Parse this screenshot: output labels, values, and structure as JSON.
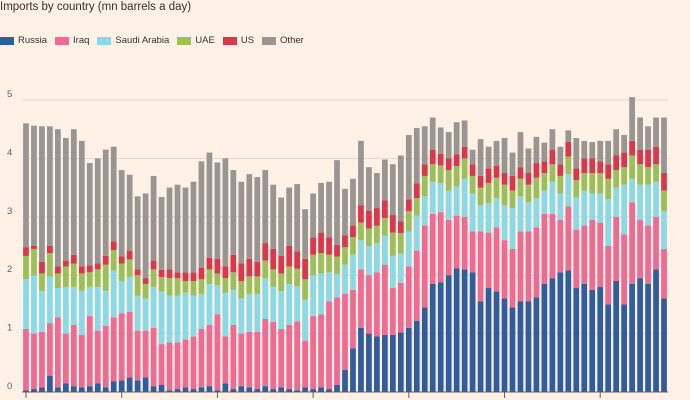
{
  "chart_data": {
    "type": "bar",
    "stacked": true,
    "title": "Imports by country (mn barrels a day)",
    "xlabel": "",
    "ylabel": "",
    "ylim": [
      0,
      5
    ],
    "yticks": [
      "0",
      "1",
      "2",
      "3",
      "4",
      "5"
    ],
    "grid": true,
    "legend_position": "top-left",
    "colors": {
      "Russia": "#2f5d9e",
      "Iraq": "#ee6b93",
      "Saudi Arabia": "#8ad9e6",
      "UAE": "#9bbf5a",
      "US": "#d9384a",
      "Other": "#999593"
    },
    "series": [
      {
        "name": "Russia",
        "values": [
          0.03,
          0.05,
          0.08,
          0.28,
          0.08,
          0.15,
          0.1,
          0.08,
          0.1,
          0.15,
          0.08,
          0.18,
          0.2,
          0.25,
          0.2,
          0.25,
          0.1,
          0.12,
          0.03,
          0.05,
          0.08,
          0.05,
          0.08,
          0.1,
          0.03,
          0.15,
          0.05,
          0.1,
          0.08,
          0.05,
          0.1,
          0.05,
          0.08,
          0.05,
          0.03,
          0.08,
          0.05,
          0.08,
          0.05,
          0.12,
          0.38,
          0.75,
          1.1,
          1.0,
          0.95,
          0.98,
          0.98,
          1.02,
          1.1,
          1.22,
          1.45,
          1.85,
          1.88,
          2.0,
          2.12,
          2.1,
          2.05,
          1.55,
          1.78,
          1.72,
          1.6,
          1.45,
          1.55,
          1.55,
          1.62,
          1.85,
          1.95,
          2.05,
          2.08,
          1.78,
          1.85,
          1.75,
          1.8,
          1.5,
          1.9,
          1.5,
          1.85,
          1.95,
          1.85,
          2.1,
          1.6
        ]
      },
      {
        "name": "Iraq",
        "values": [
          1.05,
          0.95,
          0.95,
          0.9,
          1.2,
          0.85,
          1.05,
          0.9,
          1.2,
          0.9,
          1.05,
          1.1,
          1.15,
          1.12,
          0.85,
          0.8,
          1.0,
          0.7,
          0.82,
          0.8,
          0.82,
          0.9,
          1.0,
          1.05,
          1.3,
          0.8,
          1.1,
          0.9,
          0.95,
          0.98,
          1.15,
          1.15,
          1.0,
          1.1,
          1.18,
          0.8,
          1.25,
          1.25,
          1.5,
          1.5,
          1.3,
          1.0,
          1.0,
          1.0,
          1.1,
          1.2,
          0.8,
          0.85,
          1.05,
          1.2,
          1.4,
          1.2,
          1.2,
          0.95,
          0.9,
          0.9,
          0.7,
          1.2,
          0.95,
          1.1,
          1.0,
          1.0,
          1.2,
          1.2,
          1.2,
          1.2,
          1.1,
          0.9,
          1.1,
          1.0,
          1.0,
          1.2,
          1.1,
          1.0,
          1.1,
          1.2,
          1.4,
          1.0,
          1.0,
          0.9,
          0.85
        ]
      },
      {
        "name": "Saudi Arabia",
        "values": [
          0.85,
          1.0,
          0.7,
          0.8,
          0.5,
          0.8,
          0.65,
          0.75,
          0.5,
          0.75,
          0.6,
          0.8,
          0.55,
          0.6,
          0.6,
          0.55,
          0.7,
          0.9,
          0.8,
          0.8,
          0.8,
          0.7,
          0.6,
          0.7,
          0.5,
          0.75,
          0.6,
          0.6,
          0.65,
          0.65,
          0.7,
          0.6,
          0.65,
          0.7,
          0.6,
          0.7,
          0.7,
          0.7,
          0.5,
          0.4,
          0.5,
          0.6,
          0.5,
          0.5,
          0.5,
          0.5,
          0.55,
          0.5,
          0.6,
          0.6,
          0.5,
          0.55,
          0.5,
          0.5,
          0.5,
          0.65,
          0.65,
          0.45,
          0.5,
          0.5,
          0.6,
          0.7,
          0.6,
          0.5,
          0.5,
          0.4,
          0.55,
          0.45,
          0.55,
          0.55,
          0.6,
          0.45,
          0.5,
          0.8,
          0.5,
          0.85,
          0.4,
          0.6,
          0.7,
          0.6,
          0.65
        ]
      },
      {
        "name": "UAE",
        "values": [
          0.4,
          0.45,
          0.3,
          0.4,
          0.25,
          0.35,
          0.4,
          0.3,
          0.25,
          0.3,
          0.45,
          0.35,
          0.3,
          0.3,
          0.35,
          0.25,
          0.3,
          0.25,
          0.3,
          0.3,
          0.2,
          0.25,
          0.25,
          0.25,
          0.2,
          0.25,
          0.3,
          0.3,
          0.3,
          0.3,
          0.3,
          0.3,
          0.3,
          0.3,
          0.3,
          0.35,
          0.35,
          0.35,
          0.3,
          0.3,
          0.3,
          0.3,
          0.3,
          0.3,
          0.3,
          0.3,
          0.4,
          0.35,
          0.35,
          0.3,
          0.35,
          0.3,
          0.3,
          0.35,
          0.35,
          0.35,
          0.3,
          0.3,
          0.35,
          0.35,
          0.35,
          0.3,
          0.3,
          0.3,
          0.35,
          0.3,
          0.3,
          0.3,
          0.3,
          0.3,
          0.3,
          0.35,
          0.35,
          0.35,
          0.3,
          0.3,
          0.4,
          0.35,
          0.3,
          0.3,
          0.35
        ]
      },
      {
        "name": "US",
        "values": [
          0.15,
          0.05,
          0.2,
          0.12,
          0.12,
          0.1,
          0.15,
          0.12,
          0.12,
          0.1,
          0.15,
          0.15,
          0.12,
          0.15,
          0.1,
          0.1,
          0.15,
          0.12,
          0.15,
          0.1,
          0.15,
          0.15,
          0.2,
          0.2,
          0.25,
          0.2,
          0.3,
          0.3,
          0.3,
          0.25,
          0.3,
          0.35,
          0.3,
          0.35,
          0.3,
          0.35,
          0.3,
          0.35,
          0.3,
          0.2,
          0.2,
          0.2,
          0.3,
          0.3,
          0.3,
          0.3,
          0.3,
          0.2,
          0.2,
          0.25,
          0.2,
          0.25,
          0.2,
          0.2,
          0.2,
          0.2,
          0.2,
          0.2,
          0.25,
          0.2,
          0.2,
          0.25,
          0.2,
          0.2,
          0.25,
          0.2,
          0.25,
          0.2,
          0.25,
          0.2,
          0.25,
          0.25,
          0.2,
          0.25,
          0.25,
          0.25,
          0.25,
          0.25,
          0.3,
          0.3,
          0.3
        ]
      },
      {
        "name": "Other",
        "values": [
          2.12,
          2.06,
          2.32,
          2.05,
          2.35,
          2.1,
          2.15,
          2.15,
          1.75,
          1.8,
          1.82,
          1.62,
          1.48,
          1.3,
          1.25,
          1.45,
          1.45,
          1.25,
          1.4,
          1.5,
          1.45,
          1.55,
          1.82,
          1.8,
          1.65,
          1.85,
          1.45,
          1.4,
          1.45,
          1.45,
          1.25,
          1.1,
          1.0,
          1.0,
          1.15,
          0.85,
          0.75,
          0.85,
          0.95,
          1.45,
          0.8,
          0.8,
          1.1,
          0.75,
          0.6,
          0.7,
          0.87,
          1.13,
          1.1,
          0.95,
          0.65,
          0.55,
          0.45,
          0.45,
          0.55,
          0.45,
          0.25,
          0.63,
          0.37,
          0.43,
          0.6,
          0.4,
          0.6,
          0.42,
          0.45,
          0.32,
          0.35,
          0.3,
          0.2,
          0.52,
          0.3,
          0.28,
          0.35,
          0.4,
          0.45,
          0.3,
          0.75,
          0.55,
          0.4,
          0.5,
          0.95
        ]
      }
    ]
  }
}
